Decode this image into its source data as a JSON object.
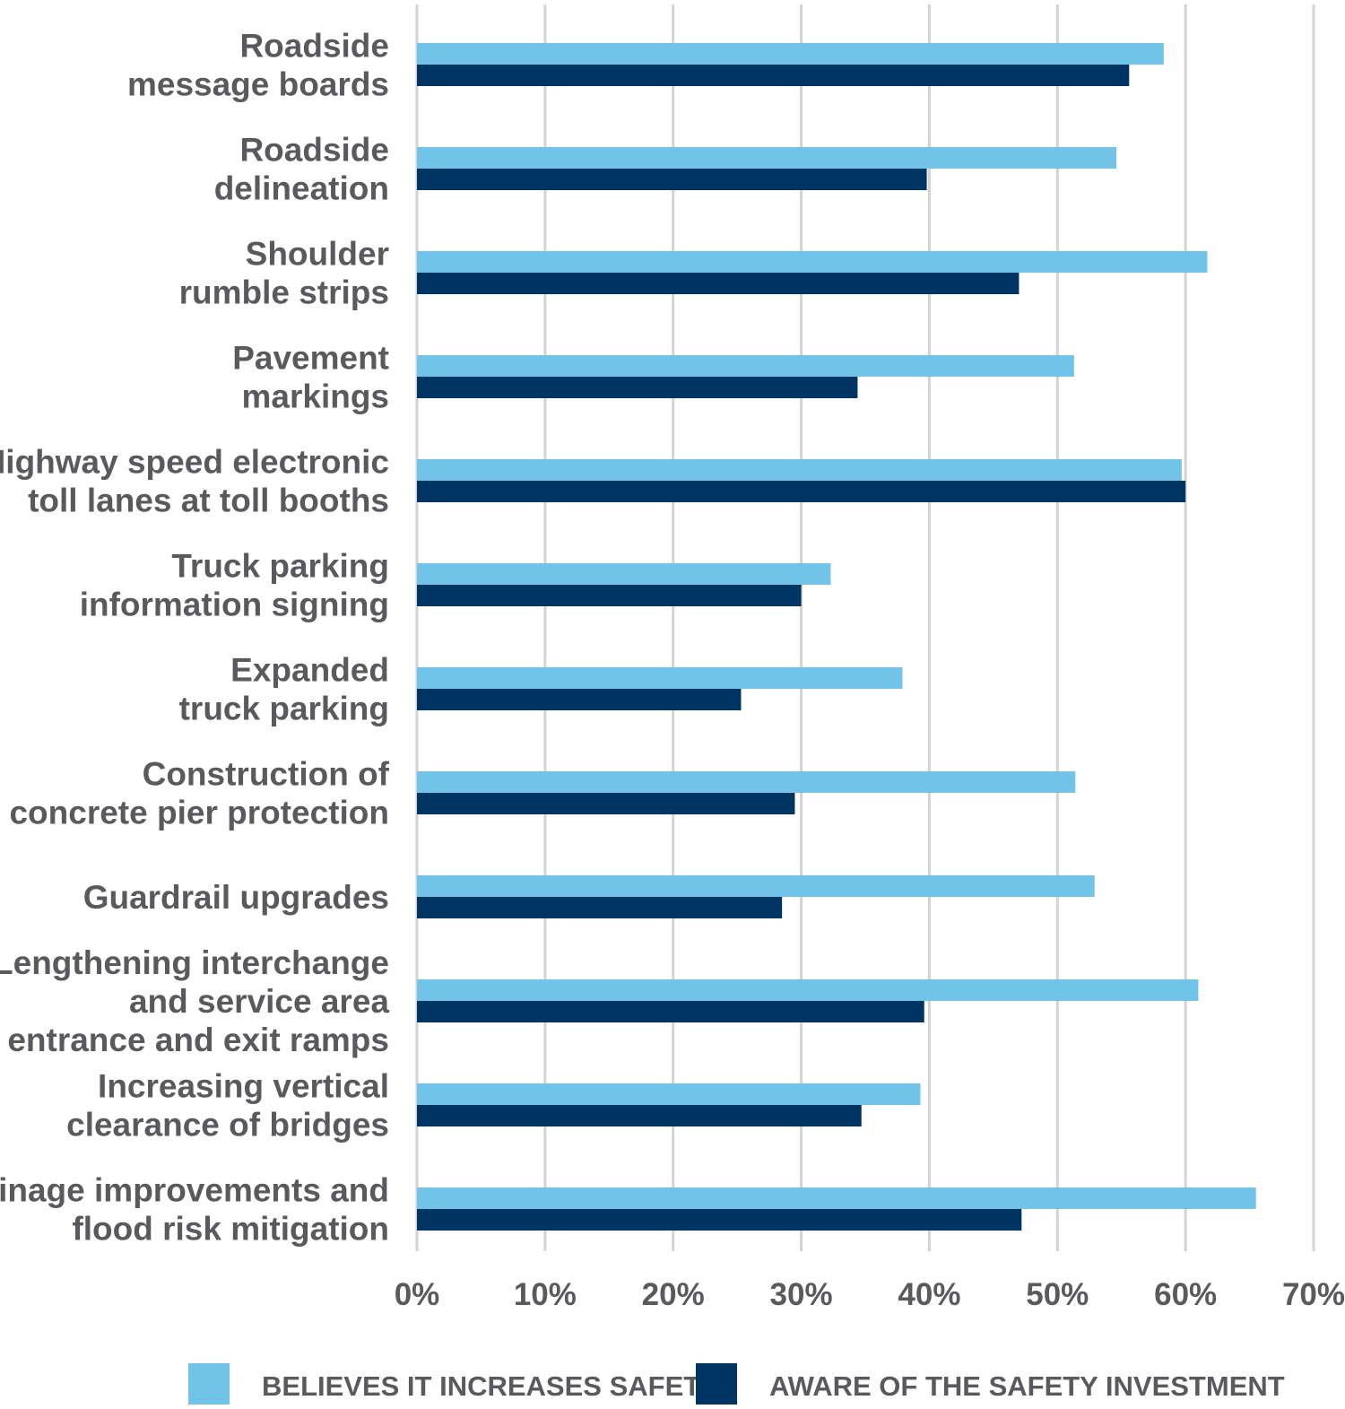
{
  "chart_data": {
    "type": "bar",
    "orientation": "horizontal",
    "categories": [
      [
        "Roadside",
        "message boards"
      ],
      [
        "Roadside",
        "delineation"
      ],
      [
        "Shoulder",
        "rumble strips"
      ],
      [
        "Pavement",
        "markings"
      ],
      [
        "Highway speed electronic",
        "toll lanes at toll booths"
      ],
      [
        "Truck parking",
        "information signing"
      ],
      [
        "Expanded",
        "truck parking"
      ],
      [
        "Construction of",
        "concrete pier protection"
      ],
      [
        "Guardrail upgrades"
      ],
      [
        "Lengthening interchange",
        "and service area",
        "entrance and exit ramps"
      ],
      [
        "Increasing vertical",
        "clearance of bridges"
      ],
      [
        "Drainage improvements and",
        "flood risk mitigation"
      ]
    ],
    "series": [
      {
        "name": "BELIEVES IT INCREASES SAFETY",
        "color": "#72c3e8",
        "values": [
          58.3,
          54.6,
          61.7,
          51.3,
          59.7,
          32.3,
          37.9,
          51.4,
          52.9,
          61.0,
          39.3,
          65.5
        ]
      },
      {
        "name": "AWARE OF THE SAFETY INVESTMENT",
        "color": "#003462",
        "values": [
          55.6,
          39.8,
          47.0,
          34.4,
          60.0,
          30.0,
          25.3,
          29.5,
          28.5,
          39.6,
          34.7,
          47.2
        ]
      }
    ],
    "xlim": [
      0,
      70
    ],
    "xticks": [
      "0%",
      "10%",
      "20%",
      "30%",
      "40%",
      "50%",
      "60%",
      "70%"
    ],
    "grid": true,
    "legend_position": "bottom"
  }
}
